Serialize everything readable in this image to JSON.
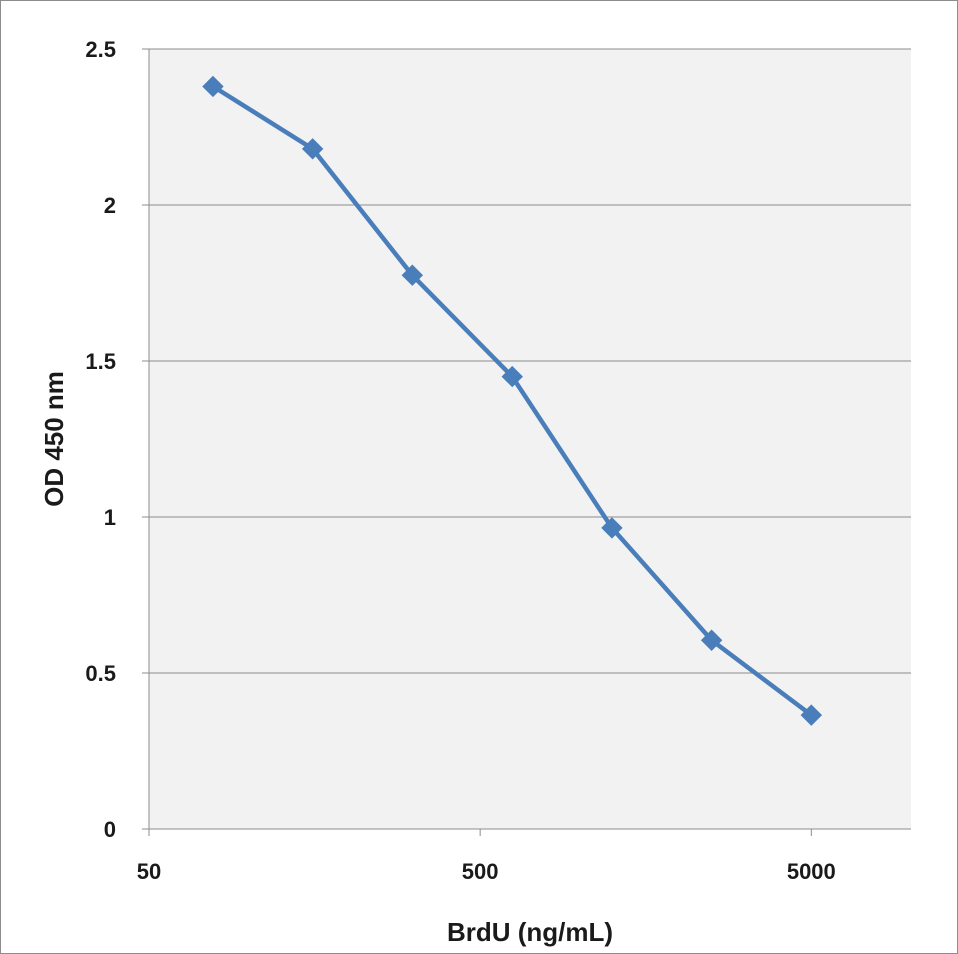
{
  "chart_data": {
    "type": "line",
    "title": "",
    "xlabel": "BrdU (ng/mL)",
    "ylabel": "OD 450 nm",
    "x_scale": "log",
    "xlim": [
      50,
      10000
    ],
    "ylim": [
      0,
      2.5
    ],
    "x_ticks": [
      "50",
      "500",
      "5000"
    ],
    "y_ticks": [
      "0",
      "0.5",
      "1",
      "1.5",
      "2",
      "2.5"
    ],
    "grid": "horizontal",
    "legend": "none",
    "plot_background": "#f2f2f2",
    "series": [
      {
        "color": "#4a7ebb",
        "marker": "diamond",
        "x": [
          78,
          156,
          312,
          625,
          1250,
          2500,
          5000
        ],
        "y": [
          2.38,
          2.18,
          1.775,
          1.45,
          0.965,
          0.605,
          0.365
        ]
      }
    ]
  }
}
